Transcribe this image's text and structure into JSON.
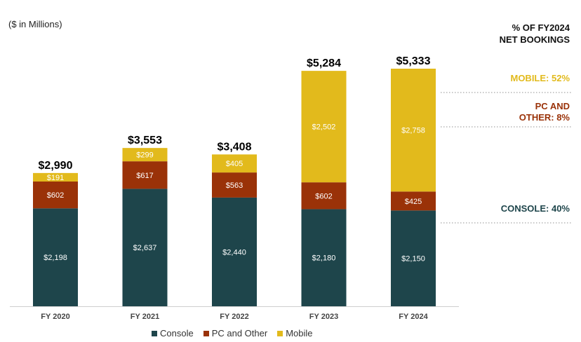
{
  "chart_data": {
    "type": "bar",
    "stacked": true,
    "subtitle": "($ in Millions)",
    "categories": [
      "FY 2020",
      "FY 2021",
      "FY 2022",
      "FY 2023",
      "FY 2024"
    ],
    "series": [
      {
        "name": "Console",
        "color": "#1e454b",
        "values": [
          2198,
          2637,
          2440,
          2180,
          2150
        ],
        "labels": [
          "$2,198",
          "$2,637",
          "$2,440",
          "$2,180",
          "$2,150"
        ]
      },
      {
        "name": "PC and Other",
        "color": "#9a3208",
        "values": [
          602,
          617,
          563,
          602,
          425
        ],
        "labels": [
          "$602",
          "$617",
          "$563",
          "$602",
          "$425"
        ]
      },
      {
        "name": "Mobile",
        "color": "#e2ba1c",
        "values": [
          191,
          299,
          405,
          2502,
          2758
        ],
        "labels": [
          "$191",
          "$299",
          "$405",
          "$2,502",
          "$2,758"
        ]
      }
    ],
    "totals": [
      "$2,990",
      "$3,553",
      "$3,408",
      "$5,284",
      "$5,333"
    ],
    "ylim": [
      0,
      5333
    ],
    "grid": false,
    "legend_position": "bottom"
  },
  "side_panel": {
    "title_line1": "% OF FY2024",
    "title_line2": "NET BOOKINGS",
    "mobile": {
      "line1": "MOBILE: 52%",
      "color": "#e2ba1c"
    },
    "pc_other": {
      "line1": "PC AND",
      "line2": "OTHER: 8%",
      "color": "#9a3208"
    },
    "console": {
      "line1": "CONSOLE: 40%",
      "color": "#1e454b"
    }
  }
}
